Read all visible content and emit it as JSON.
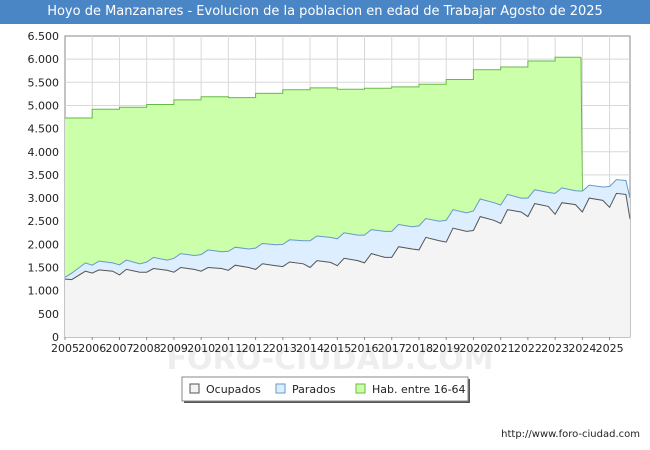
{
  "page": {
    "title": "Hoyo de Manzanares - Evolucion de la poblacion en edad de Trabajar Agosto de 2025",
    "footer_url": "http://www.foro-ciudad.com",
    "watermark": "FORO-CIUDAD.COM"
  },
  "colors": {
    "title_bg": "#4a86c5",
    "hab_fill": "#ccffaa",
    "hab_line": "#66bb44",
    "parados_fill": "#ddeeff",
    "parados_line": "#6699cc",
    "ocupados_fill": "#f4f4f4",
    "ocupados_line": "#555555"
  },
  "chart_data": {
    "type": "area",
    "title": "Hoyo de Manzanares - Evolucion de la poblacion en edad de Trabajar Agosto de 2025",
    "xlabel": "",
    "ylabel": "",
    "xlim": [
      2005,
      2025.75
    ],
    "ylim": [
      0,
      6500
    ],
    "x_ticks": [
      "2005",
      "2006",
      "2007",
      "2008",
      "2009",
      "2010",
      "2011",
      "2012",
      "2013",
      "2014",
      "2015",
      "2016",
      "2017",
      "2018",
      "2019",
      "2020",
      "2021",
      "2022",
      "2023",
      "2024",
      "2025"
    ],
    "y_ticks": [
      {
        "value": 0,
        "label": "0"
      },
      {
        "value": 500,
        "label": "500"
      },
      {
        "value": 1000,
        "label": "1.000"
      },
      {
        "value": 1500,
        "label": "1.500"
      },
      {
        "value": 2000,
        "label": "2.000"
      },
      {
        "value": 2500,
        "label": "2.500"
      },
      {
        "value": 3000,
        "label": "3.000"
      },
      {
        "value": 3500,
        "label": "3.500"
      },
      {
        "value": 4000,
        "label": "4.000"
      },
      {
        "value": 4500,
        "label": "4.500"
      },
      {
        "value": 5000,
        "label": "5.000"
      },
      {
        "value": 5500,
        "label": "5.500"
      },
      {
        "value": 6000,
        "label": "6.000"
      },
      {
        "value": 6500,
        "label": "6.500"
      }
    ],
    "grid": true,
    "legend_position": "bottom-center",
    "series": [
      {
        "name": "Hab. entre 16-64",
        "key": "hab",
        "step": true,
        "x": [
          2005,
          2006,
          2007,
          2008,
          2009,
          2010,
          2011,
          2012,
          2013,
          2014,
          2015,
          2016,
          2017,
          2018,
          2019,
          2020,
          2021,
          2022,
          2023,
          2023.95
        ],
        "values": [
          4730,
          4920,
          4960,
          5020,
          5120,
          5190,
          5170,
          5260,
          5340,
          5380,
          5350,
          5370,
          5400,
          5460,
          5560,
          5770,
          5830,
          5960,
          6040,
          6040
        ]
      },
      {
        "name": "Parados",
        "key": "parados",
        "x": [
          2005,
          2005.25,
          2005.75,
          2006,
          2006.25,
          2006.75,
          2007,
          2007.25,
          2007.75,
          2008,
          2008.25,
          2008.75,
          2009,
          2009.25,
          2009.75,
          2010,
          2010.25,
          2010.75,
          2011,
          2011.25,
          2011.75,
          2012,
          2012.25,
          2012.75,
          2013,
          2013.25,
          2013.75,
          2014,
          2014.25,
          2014.75,
          2015,
          2015.25,
          2015.75,
          2016,
          2016.25,
          2016.75,
          2017,
          2017.25,
          2017.75,
          2018,
          2018.25,
          2018.75,
          2019,
          2019.25,
          2019.75,
          2020,
          2020.25,
          2020.75,
          2021,
          2021.25,
          2021.75,
          2022,
          2022.25,
          2022.75,
          2023,
          2023.25,
          2023.75,
          2024,
          2024.25,
          2024.75,
          2025,
          2025.25,
          2025.6,
          2025.75
        ],
        "values": [
          1290,
          1380,
          1600,
          1550,
          1640,
          1600,
          1560,
          1660,
          1580,
          1620,
          1720,
          1660,
          1700,
          1800,
          1760,
          1780,
          1880,
          1840,
          1850,
          1940,
          1900,
          1920,
          2020,
          1990,
          2000,
          2100,
          2080,
          2080,
          2180,
          2150,
          2120,
          2250,
          2200,
          2200,
          2320,
          2280,
          2280,
          2430,
          2380,
          2400,
          2560,
          2500,
          2520,
          2750,
          2680,
          2720,
          2980,
          2900,
          2850,
          3080,
          3000,
          3000,
          3180,
          3120,
          3100,
          3220,
          3160,
          3150,
          3280,
          3240,
          3250,
          3400,
          3380,
          3000
        ]
      },
      {
        "name": "Ocupados",
        "key": "ocupados",
        "x": [
          2005,
          2005.25,
          2005.75,
          2006,
          2006.25,
          2006.75,
          2007,
          2007.25,
          2007.75,
          2008,
          2008.25,
          2008.75,
          2009,
          2009.25,
          2009.75,
          2010,
          2010.25,
          2010.75,
          2011,
          2011.25,
          2011.75,
          2012,
          2012.25,
          2012.75,
          2013,
          2013.25,
          2013.75,
          2014,
          2014.25,
          2014.75,
          2015,
          2015.25,
          2015.75,
          2016,
          2016.25,
          2016.75,
          2017,
          2017.25,
          2017.75,
          2018,
          2018.25,
          2018.75,
          2019,
          2019.25,
          2019.75,
          2020,
          2020.25,
          2020.75,
          2021,
          2021.25,
          2021.75,
          2022,
          2022.25,
          2022.75,
          2023,
          2023.25,
          2023.75,
          2024,
          2024.25,
          2024.75,
          2025,
          2025.25,
          2025.6,
          2025.75
        ],
        "values": [
          1250,
          1240,
          1420,
          1380,
          1450,
          1420,
          1340,
          1460,
          1400,
          1400,
          1480,
          1440,
          1400,
          1500,
          1460,
          1420,
          1500,
          1480,
          1440,
          1550,
          1500,
          1460,
          1580,
          1540,
          1520,
          1620,
          1580,
          1500,
          1650,
          1610,
          1540,
          1700,
          1650,
          1600,
          1800,
          1720,
          1720,
          1950,
          1900,
          1880,
          2150,
          2080,
          2050,
          2350,
          2280,
          2300,
          2600,
          2520,
          2450,
          2750,
          2700,
          2600,
          2880,
          2820,
          2650,
          2900,
          2860,
          2700,
          3000,
          2950,
          2800,
          3100,
          3080,
          2550
        ]
      }
    ],
    "legend": [
      {
        "label": "Ocupados",
        "key": "ocupados"
      },
      {
        "label": "Parados",
        "key": "parados"
      },
      {
        "label": "Hab. entre 16-64",
        "key": "hab"
      }
    ]
  }
}
